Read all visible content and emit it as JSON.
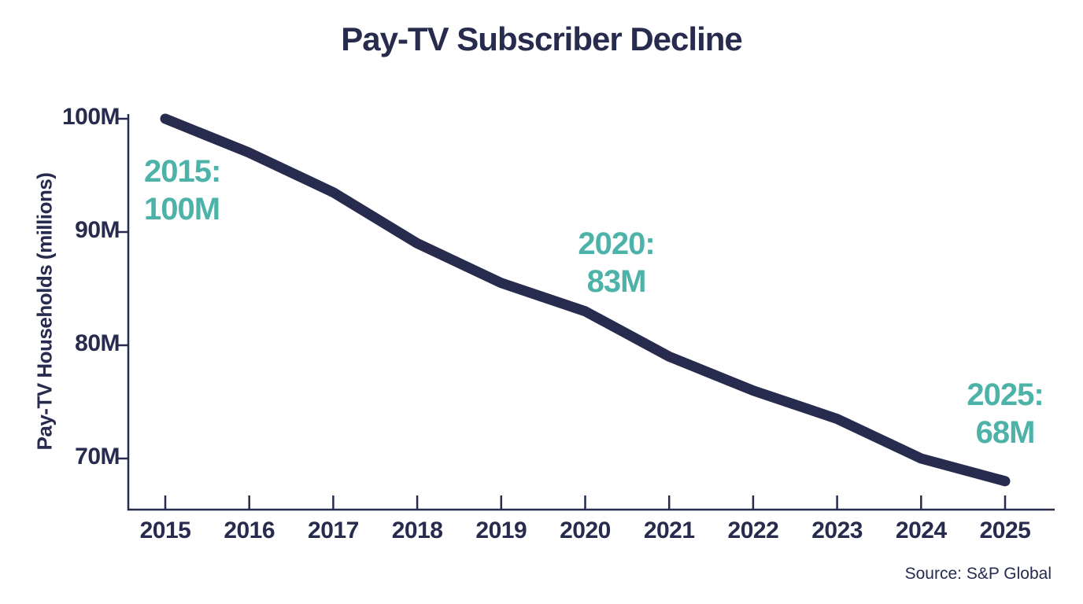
{
  "chart": {
    "title": "Pay-TV Subscriber Decline",
    "ylabel": "Pay-TV Households (millions)"
  },
  "chart_data": {
    "type": "line",
    "title": "Pay-TV Subscriber Decline",
    "xlabel": "",
    "ylabel": "Pay-TV Households (millions)",
    "categories": [
      "2015",
      "2016",
      "2017",
      "2018",
      "2019",
      "2020",
      "2021",
      "2022",
      "2023",
      "2024",
      "2025"
    ],
    "series": [
      {
        "name": "Pay-TV Households (millions)",
        "values": [
          100,
          97,
          93.5,
          89,
          85.5,
          83,
          79,
          76,
          73.5,
          70,
          68
        ]
      }
    ],
    "y_ticks": [
      {
        "label": "100M",
        "value": 100
      },
      {
        "label": "90M",
        "value": 90
      },
      {
        "label": "80M",
        "value": 80
      },
      {
        "label": "70M",
        "value": 70
      }
    ],
    "ylim": [
      66,
      101
    ],
    "grid": false,
    "legend": "none",
    "annotations": [
      {
        "x": "2015",
        "line1": "2015:",
        "line2": "100M"
      },
      {
        "x": "2020",
        "line1": "2020:",
        "line2": "83M"
      },
      {
        "x": "2025",
        "line1": "2025:",
        "line2": "68M"
      }
    ]
  },
  "footer": {
    "source": "Source: S&P Global"
  },
  "colors": {
    "navy": "#272b4e",
    "teal": "#4db3a9",
    "background": "#ffffff"
  }
}
